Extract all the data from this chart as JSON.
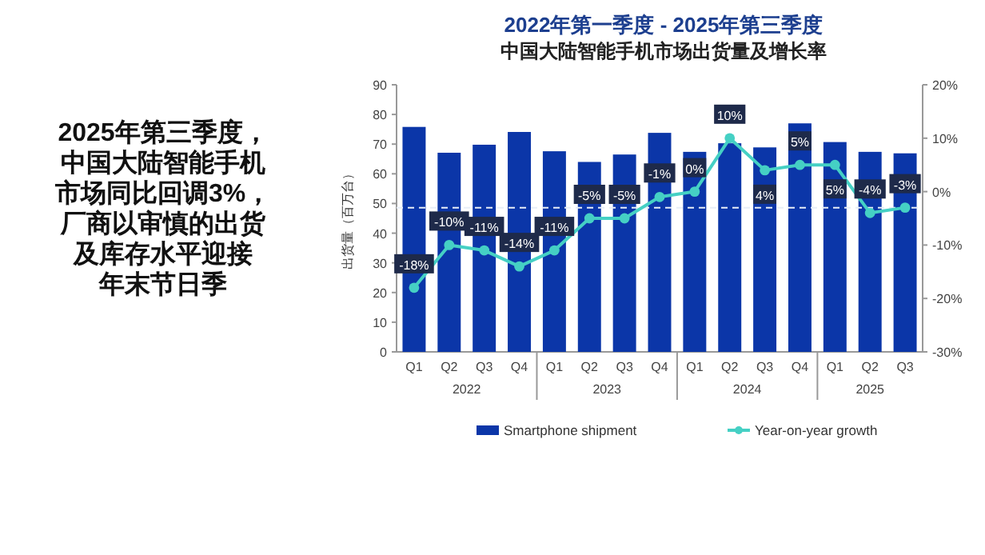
{
  "chart_data": {
    "type": "bar",
    "title": "2022年第一季度 - 2025年第三季度",
    "subtitle": "中国大陆智能手机市场出货量及增长率",
    "ylabel": "出货量（百万台）",
    "categories": [
      "Q1",
      "Q2",
      "Q3",
      "Q4",
      "Q1",
      "Q2",
      "Q3",
      "Q4",
      "Q1",
      "Q2",
      "Q3",
      "Q4",
      "Q1",
      "Q2",
      "Q3"
    ],
    "series": [
      {
        "name": "Smartphone shipment",
        "color": "#0b36a8",
        "values": [
          75.8,
          67.1,
          69.8,
          74.1,
          67.6,
          64,
          66.5,
          73.8,
          67.4,
          70.3,
          68.9,
          77,
          70.7,
          67.4,
          66.9
        ]
      },
      {
        "name": "Year-on-year growth",
        "type": "line",
        "axis": "y2",
        "color": "#45d0c4",
        "values": [
          -18,
          -10,
          -11,
          -14,
          -11,
          -5,
          -5,
          -1,
          0,
          10,
          4,
          5,
          5,
          -4,
          -3
        ],
        "value_labels": [
          "-18%",
          "-10%",
          "-11%",
          "-14%",
          "-11%",
          "-5%",
          "-5%",
          "-1%",
          "0%",
          "10%",
          "4%",
          "5%",
          "5%",
          "-4%",
          "-3%"
        ]
      }
    ],
    "ylim": [
      0,
      90
    ],
    "yticks": [
      0,
      10,
      20,
      30,
      40,
      50,
      60,
      70,
      80,
      90
    ],
    "y2lim": [
      -30,
      20
    ],
    "y2ticks": [
      {
        "value": -30,
        "label": "-30%"
      },
      {
        "value": -20,
        "label": "-20%"
      },
      {
        "value": -10,
        "label": "-10%"
      },
      {
        "value": 0,
        "label": "0%"
      },
      {
        "value": 10,
        "label": "10%"
      },
      {
        "value": 20,
        "label": "20%"
      }
    ],
    "ref_lines": [
      {
        "axis": "y2",
        "value": -3,
        "color": "#e8eef8",
        "line_style": "dashed"
      }
    ],
    "marker": "circle",
    "legend": "bottom",
    "annotations": [
      "2022",
      "2023",
      "2024",
      "2025",
      "2025年第三季度，",
      "中国大陆智能手机",
      "市场同比回调3%，",
      "厂商以审慎的出货",
      "及库存水平迎接",
      "年末节日季"
    ]
  }
}
